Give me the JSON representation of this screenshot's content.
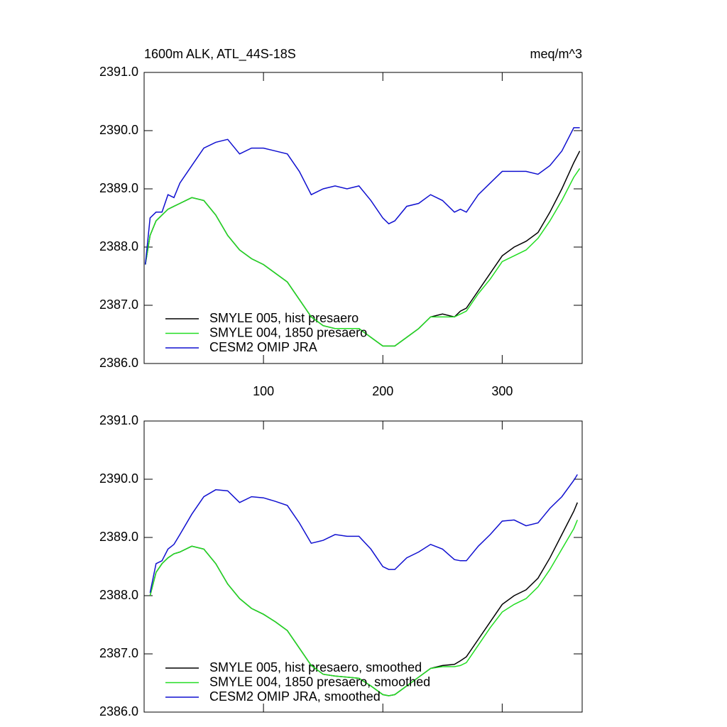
{
  "chart_data": [
    {
      "type": "line",
      "title": "1600m ALK, ATL_44S-18S",
      "units_label": "meq/m^3",
      "x": [
        1,
        5,
        10,
        15,
        20,
        25,
        30,
        40,
        50,
        60,
        70,
        80,
        90,
        100,
        110,
        120,
        130,
        140,
        150,
        160,
        170,
        180,
        190,
        200,
        205,
        210,
        220,
        230,
        240,
        250,
        260,
        265,
        270,
        280,
        290,
        300,
        310,
        320,
        330,
        340,
        350,
        360,
        365
      ],
      "series": [
        {
          "name": "SMYLE 005, hist presaero",
          "color": "#000000",
          "values": [
            2387.7,
            2388.2,
            2388.45,
            2388.55,
            2388.65,
            2388.7,
            2388.75,
            2388.85,
            2388.8,
            2388.55,
            2388.2,
            2387.95,
            2387.8,
            2387.7,
            2387.55,
            2387.4,
            2387.1,
            2386.8,
            2386.65,
            2386.6,
            2386.6,
            2386.6,
            2386.45,
            2386.3,
            2386.3,
            2386.3,
            2386.45,
            2386.6,
            2386.8,
            2386.85,
            2386.8,
            2386.9,
            2386.95,
            2387.25,
            2387.55,
            2387.85,
            2388.0,
            2388.1,
            2388.25,
            2388.6,
            2389.0,
            2389.45,
            2389.65
          ]
        },
        {
          "name": "SMYLE 004, 1850 presaero",
          "color": "#22dd22",
          "values": [
            2387.7,
            2388.2,
            2388.45,
            2388.55,
            2388.65,
            2388.7,
            2388.75,
            2388.85,
            2388.8,
            2388.55,
            2388.2,
            2387.95,
            2387.8,
            2387.7,
            2387.55,
            2387.4,
            2387.1,
            2386.8,
            2386.65,
            2386.6,
            2386.6,
            2386.6,
            2386.45,
            2386.3,
            2386.3,
            2386.3,
            2386.45,
            2386.6,
            2386.8,
            2386.8,
            2386.8,
            2386.85,
            2386.9,
            2387.2,
            2387.45,
            2387.75,
            2387.85,
            2387.95,
            2388.15,
            2388.45,
            2388.8,
            2389.2,
            2389.35
          ]
        },
        {
          "name": "CESM2 OMIP JRA",
          "color": "#1010d0",
          "values": [
            2387.7,
            2388.5,
            2388.6,
            2388.6,
            2388.9,
            2388.85,
            2389.1,
            2389.4,
            2389.7,
            2389.8,
            2389.85,
            2389.6,
            2389.7,
            2389.7,
            2389.65,
            2389.6,
            2389.3,
            2388.9,
            2389.0,
            2389.05,
            2389.0,
            2389.05,
            2388.8,
            2388.5,
            2388.4,
            2388.45,
            2388.7,
            2388.75,
            2388.9,
            2388.8,
            2388.6,
            2388.65,
            2388.6,
            2388.9,
            2389.1,
            2389.3,
            2389.3,
            2389.3,
            2389.25,
            2389.4,
            2389.65,
            2390.05,
            2390.05
          ]
        }
      ],
      "xlim": [
        0,
        367
      ],
      "xticks": [
        100,
        200,
        300
      ],
      "ylim": [
        2386,
        2391
      ],
      "yticks": [
        {
          "value": 2386,
          "label": "2386.0"
        },
        {
          "value": 2387,
          "label": "2387.0"
        },
        {
          "value": 2388,
          "label": "2388.0"
        },
        {
          "value": 2389,
          "label": "2389.0"
        },
        {
          "value": 2390,
          "label": "2390.0"
        },
        {
          "value": 2391,
          "label": "2391.0"
        }
      ]
    },
    {
      "type": "line",
      "x": [
        5,
        10,
        15,
        20,
        25,
        30,
        40,
        50,
        60,
        70,
        80,
        90,
        100,
        110,
        120,
        130,
        140,
        150,
        160,
        170,
        180,
        190,
        200,
        205,
        210,
        220,
        230,
        240,
        250,
        260,
        265,
        270,
        280,
        290,
        300,
        310,
        320,
        330,
        340,
        350,
        360,
        363
      ],
      "series": [
        {
          "name": "SMYLE 005, hist presaero, smoothed",
          "color": "#000000",
          "values": [
            2388.0,
            2388.4,
            2388.55,
            2388.65,
            2388.72,
            2388.75,
            2388.85,
            2388.8,
            2388.55,
            2388.2,
            2387.95,
            2387.78,
            2387.68,
            2387.55,
            2387.4,
            2387.1,
            2386.8,
            2386.65,
            2386.62,
            2386.6,
            2386.58,
            2386.45,
            2386.3,
            2386.28,
            2386.3,
            2386.45,
            2386.6,
            2386.75,
            2386.8,
            2386.82,
            2386.88,
            2386.95,
            2387.25,
            2387.55,
            2387.85,
            2388.0,
            2388.1,
            2388.3,
            2388.65,
            2389.05,
            2389.45,
            2389.6
          ]
        },
        {
          "name": "SMYLE 004, 1850 presaero, smoothed",
          "color": "#22dd22",
          "values": [
            2388.0,
            2388.4,
            2388.55,
            2388.65,
            2388.72,
            2388.75,
            2388.85,
            2388.8,
            2388.55,
            2388.2,
            2387.95,
            2387.78,
            2387.68,
            2387.55,
            2387.4,
            2387.1,
            2386.8,
            2386.65,
            2386.62,
            2386.6,
            2386.58,
            2386.45,
            2386.3,
            2386.28,
            2386.3,
            2386.45,
            2386.6,
            2386.75,
            2386.78,
            2386.78,
            2386.8,
            2386.85,
            2387.15,
            2387.45,
            2387.72,
            2387.85,
            2387.95,
            2388.15,
            2388.45,
            2388.8,
            2389.15,
            2389.3
          ]
        },
        {
          "name": "CESM2 OMIP JRA, smoothed",
          "color": "#1010d0",
          "values": [
            2388.05,
            2388.55,
            2388.6,
            2388.8,
            2388.88,
            2389.05,
            2389.4,
            2389.7,
            2389.82,
            2389.8,
            2389.6,
            2389.7,
            2389.68,
            2389.62,
            2389.55,
            2389.25,
            2388.9,
            2388.95,
            2389.05,
            2389.02,
            2389.02,
            2388.8,
            2388.5,
            2388.45,
            2388.45,
            2388.65,
            2388.75,
            2388.88,
            2388.8,
            2388.62,
            2388.6,
            2388.6,
            2388.85,
            2389.05,
            2389.28,
            2389.3,
            2389.2,
            2389.25,
            2389.5,
            2389.7,
            2389.98,
            2390.08
          ]
        }
      ],
      "xlim": [
        0,
        367
      ],
      "xticks": [
        100,
        200,
        300
      ],
      "ylim": [
        2386,
        2391
      ],
      "yticks": [
        {
          "value": 2386,
          "label": "2386.0"
        },
        {
          "value": 2387,
          "label": "2387.0"
        },
        {
          "value": 2388,
          "label": "2388.0"
        },
        {
          "value": 2389,
          "label": "2389.0"
        },
        {
          "value": 2390,
          "label": "2390.0"
        },
        {
          "value": 2391,
          "label": "2391.0"
        }
      ]
    }
  ]
}
